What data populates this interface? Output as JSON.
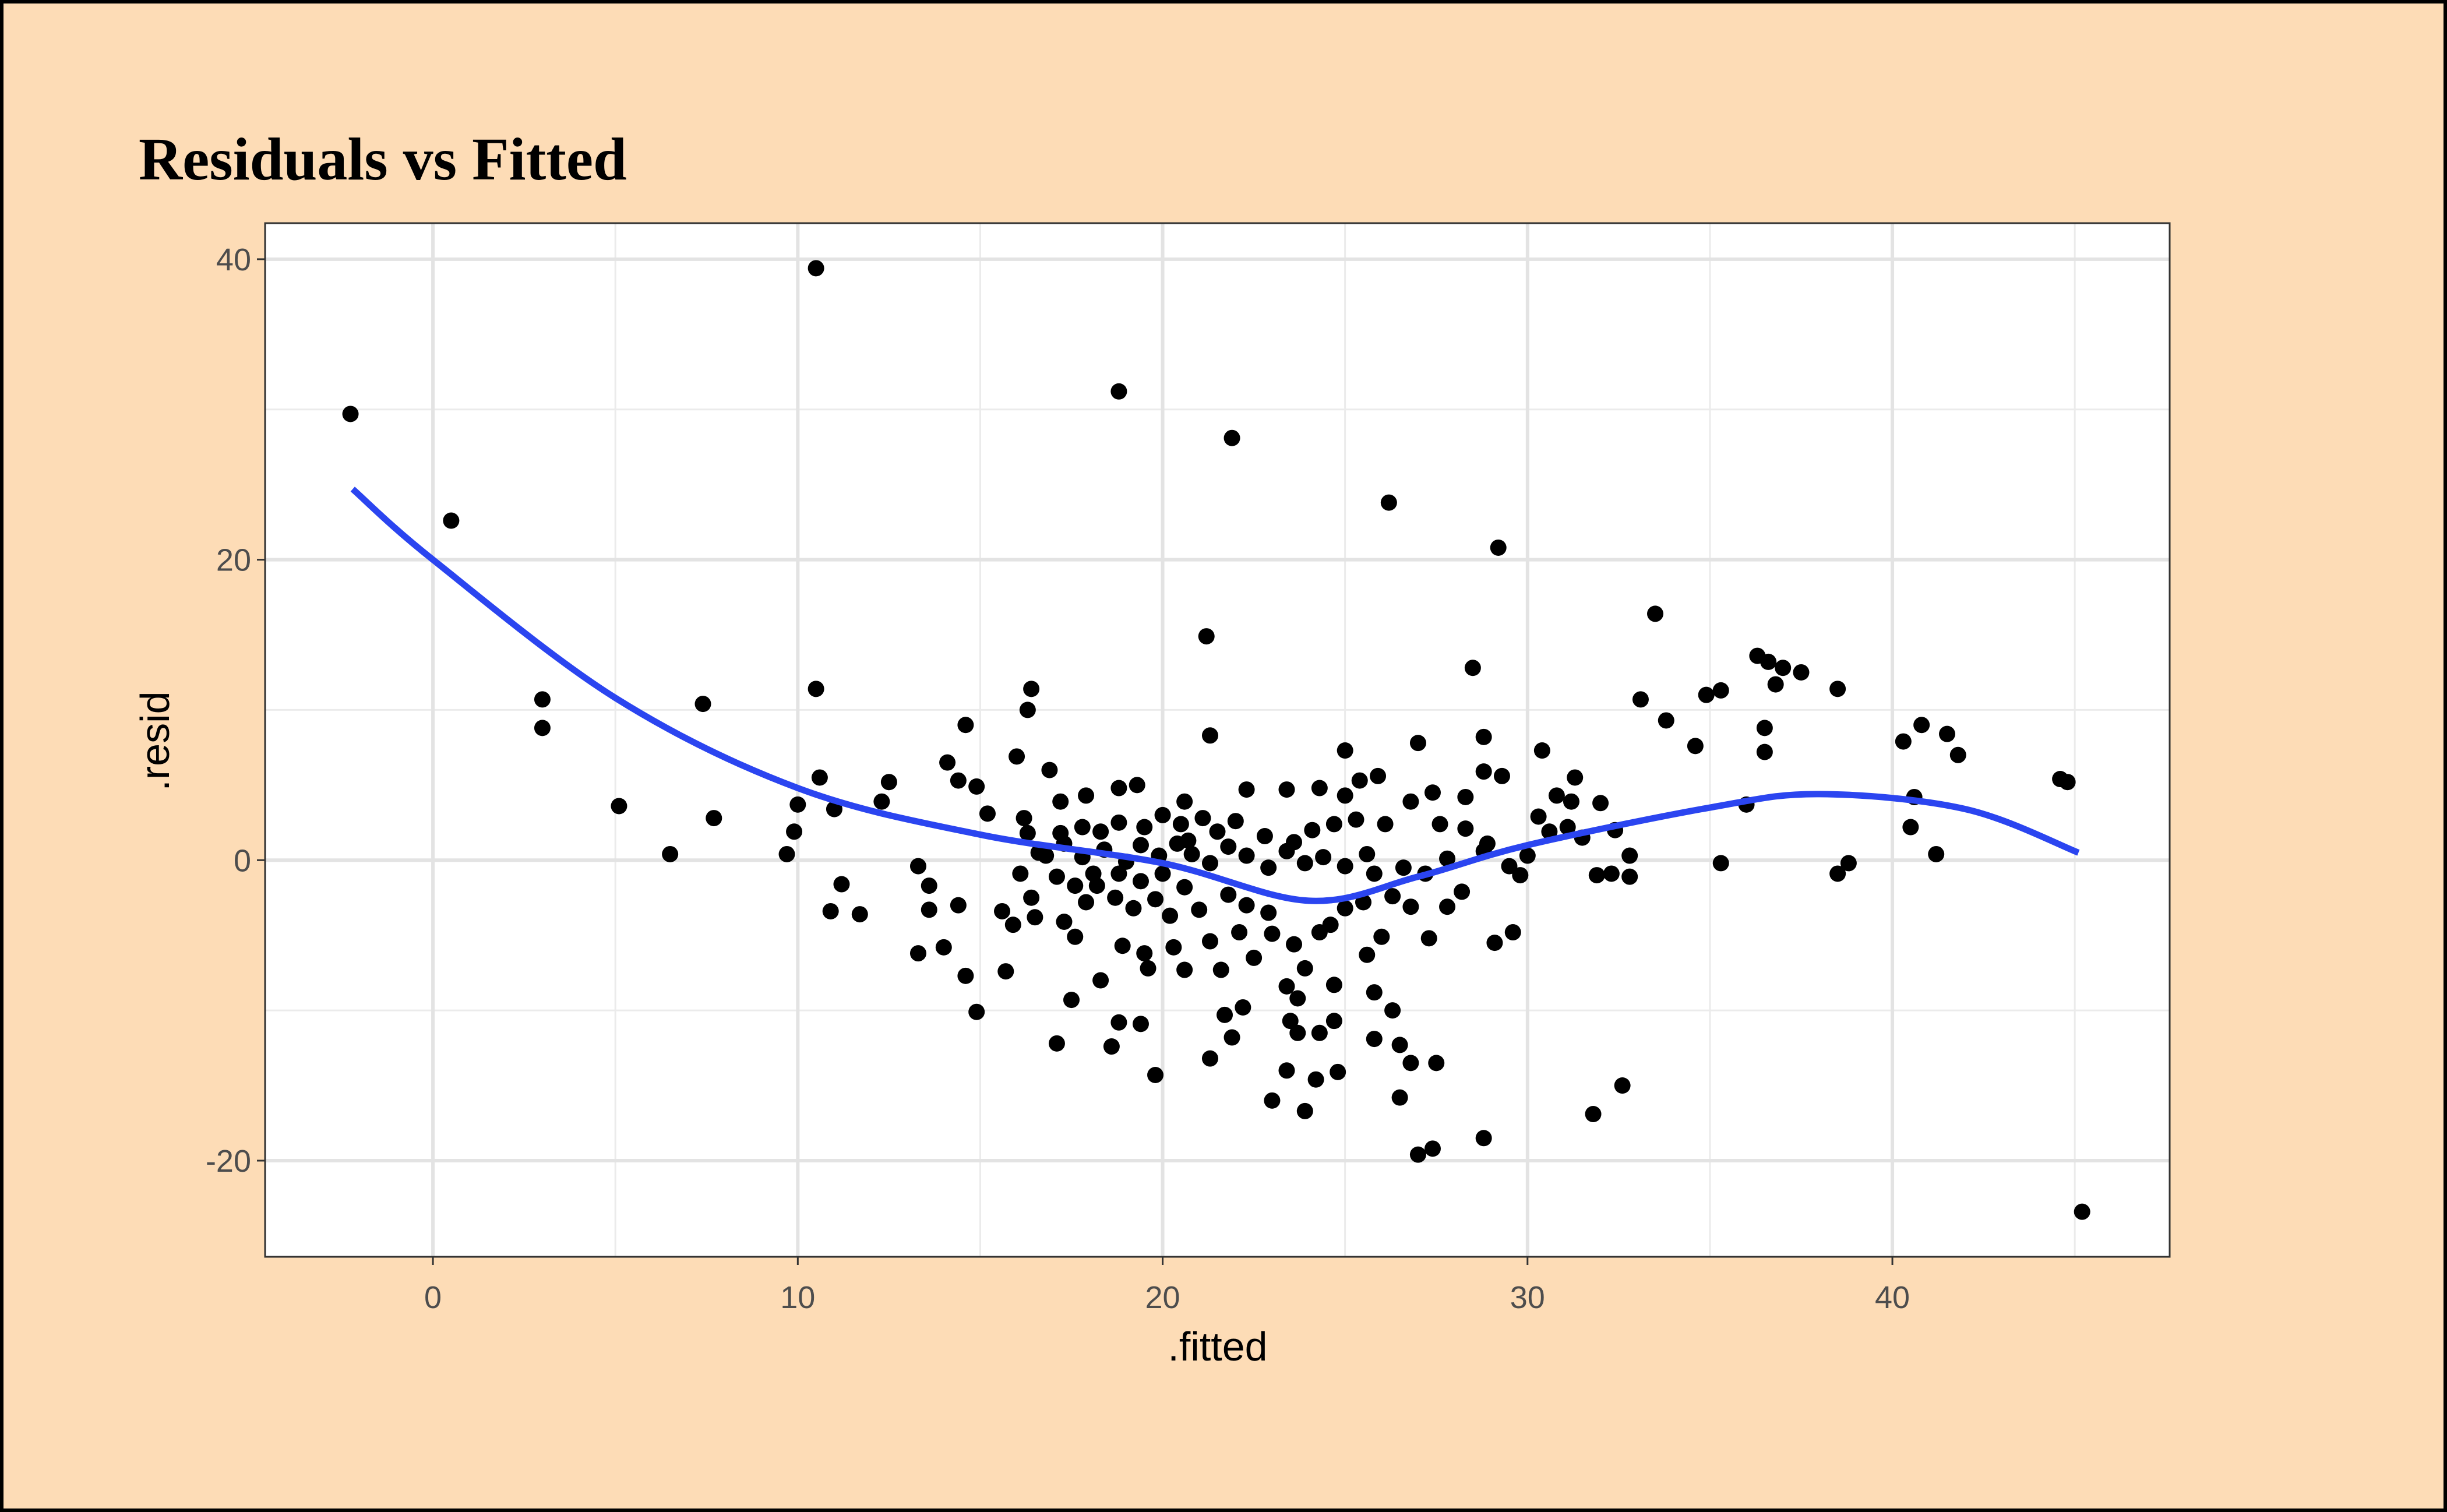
{
  "chart_data": {
    "type": "scatter",
    "title": "Residuals vs Fitted",
    "x_label": ".fitted",
    "y_label": ".resid",
    "color": "#000000",
    "grid": true,
    "xlim": [
      -4.6,
      47.6
    ],
    "ylim": [
      -26.4,
      42.4
    ],
    "xticks": [
      0,
      10,
      20,
      30,
      40
    ],
    "yticks": [
      -20,
      0,
      20,
      40
    ],
    "x": [
      -2.26,
      0.5,
      3.0,
      3.0,
      5.1,
      6.5,
      7.4,
      7.7,
      10.5,
      10.5,
      9.7,
      9.9,
      10,
      10.6,
      11.0,
      10.9,
      11.2,
      11.7,
      12.3,
      12.5,
      21.9,
      18.8,
      21.2,
      26.2,
      29.2,
      28.5,
      33.5,
      33.1,
      33.8,
      34.6,
      34.9,
      35.3,
      36.3,
      36.6,
      37.0,
      37.5,
      36.8,
      36.5,
      36.5,
      36.0,
      35.3,
      38.5,
      38.5,
      38.8,
      40.3,
      40.8,
      41.5,
      41.8,
      40.6,
      40.5,
      41.2,
      44.6,
      44.8,
      45.2,
      32.6,
      31.8,
      31.9,
      32.3,
      32.8,
      32.8,
      32.0,
      28.8,
      27.0,
      27.4,
      29.6,
      29.1,
      27.3,
      26.0,
      23.9,
      23.0,
      24.2,
      24.8,
      23.4,
      19.8,
      17.1,
      18.6,
      14.9,
      15.7,
      14.6,
      14.0,
      13.3,
      13.6,
      13.6,
      13.3,
      14.4,
      16.4,
      16.3,
      14.6,
      14.1,
      16.0,
      16.9,
      27.0,
      28.8,
      30.4,
      31.3,
      25.0,
      21.3,
      26.5,
      26.8,
      27.5,
      26.5,
      25.8,
      26.3,
      25.8,
      21.3,
      21.9,
      21.7,
      22.2,
      23.5,
      23.7,
      24.7,
      24.3,
      19.4,
      18.8,
      18.3,
      17.5,
      19.6,
      20.6,
      21.6,
      22.5,
      23.4,
      24.7,
      25.6,
      28.2,
      27.8,
      29.5,
      29.8,
      30.0,
      30.6,
      31.1,
      31.5,
      32.4,
      30.8,
      31.2,
      30.3,
      28.9,
      28.3,
      27.6,
      26.8,
      27.4,
      28.3,
      29.3,
      28.8,
      25.9,
      25.4,
      25.0,
      24.3,
      23.4,
      22.3,
      20.6,
      19.3,
      18.8,
      17.9,
      17.2,
      16.2,
      15.2,
      14.9,
      14.4,
      16.3,
      16.6,
      16.1,
      16.4,
      15.6,
      15.9,
      16.5,
      17.3,
      17.9,
      18.2,
      18.7,
      19.2,
      19.8,
      20.2,
      20.6,
      21.0,
      21.8,
      22.3,
      22.9,
      23.0,
      23.6,
      24.3,
      24.6,
      25.0,
      25.5,
      26.3,
      26.8,
      25.8,
      26.6,
      27.2,
      27.8,
      28.8,
      25.6,
      25.0,
      24.4,
      23.9,
      23.4,
      22.9,
      22.3,
      21.8,
      21.3,
      20.8,
      20.4,
      19.9,
      19.4,
      19.0,
      18.4,
      17.8,
      17.3,
      16.8,
      21.5,
      22.0,
      21.1,
      20.5,
      20.0,
      19.5,
      18.8,
      18.3,
      17.8,
      17.2,
      22.8,
      23.6,
      24.1,
      24.7,
      25.3,
      26.1,
      20.7,
      20.0,
      19.4,
      18.8,
      18.1,
      17.6,
      17.1,
      17.6,
      18.9,
      19.5,
      20.3,
      21.3,
      22.1,
      23.9,
      23.7
    ],
    "values": [
      29.7,
      22.6,
      10.7,
      8.8,
      3.6,
      0.4,
      10.4,
      2.8,
      39.4,
      11.4,
      0.4,
      1.9,
      3.7,
      5.5,
      3.4,
      -3.4,
      -1.6,
      -3.6,
      3.9,
      5.2,
      28.1,
      31.2,
      14.9,
      23.8,
      20.8,
      12.8,
      16.4,
      10.7,
      9.3,
      7.6,
      11.0,
      11.3,
      13.6,
      13.2,
      12.8,
      12.5,
      11.7,
      8.8,
      7.2,
      3.7,
      -0.2,
      11.4,
      -0.9,
      -0.2,
      7.9,
      9.0,
      8.4,
      7.0,
      4.2,
      2.2,
      0.4,
      5.4,
      5.2,
      -23.4,
      -15.0,
      -16.9,
      -1.0,
      -0.9,
      -1.1,
      0.3,
      3.8,
      -18.5,
      -19.6,
      -19.2,
      -4.8,
      -5.5,
      -5.2,
      -5.1,
      -16.7,
      -16.0,
      -14.6,
      -14.1,
      -14.0,
      -14.3,
      -12.2,
      -12.4,
      -10.1,
      -7.4,
      -7.7,
      -5.8,
      -6.2,
      -3.3,
      -1.7,
      -0.4,
      -3.0,
      11.4,
      10.0,
      9.0,
      6.5,
      6.9,
      6.0,
      7.8,
      8.2,
      7.3,
      5.5,
      7.3,
      8.3,
      -15.8,
      -13.5,
      -13.5,
      -12.3,
      -11.9,
      -10.0,
      -8.8,
      -13.2,
      -11.8,
      -10.3,
      -9.8,
      -10.7,
      -11.5,
      -10.7,
      -11.5,
      -10.9,
      -10.8,
      -8.0,
      -9.3,
      -7.2,
      -7.3,
      -7.3,
      -6.5,
      -8.4,
      -8.3,
      -6.3,
      -2.1,
      -3.1,
      -0.4,
      -1.0,
      0.3,
      1.9,
      2.2,
      1.5,
      2.0,
      4.3,
      3.9,
      2.9,
      1.1,
      2.1,
      2.4,
      3.9,
      4.5,
      4.2,
      5.6,
      5.9,
      5.6,
      5.3,
      4.3,
      4.8,
      4.7,
      4.7,
      3.9,
      5.0,
      4.8,
      4.3,
      3.9,
      2.8,
      3.1,
      4.9,
      5.3,
      1.8,
      0.5,
      -0.9,
      -2.5,
      -3.4,
      -4.3,
      -3.8,
      -4.1,
      -2.8,
      -1.7,
      -2.5,
      -3.2,
      -2.6,
      -3.7,
      -1.8,
      -3.3,
      -2.3,
      -3.0,
      -3.5,
      -4.9,
      -5.6,
      -4.8,
      -4.3,
      -3.2,
      -2.8,
      -2.4,
      -3.1,
      -0.9,
      -0.5,
      -0.9,
      0.1,
      0.6,
      0.4,
      -0.4,
      0.2,
      -0.2,
      0.6,
      -0.5,
      0.3,
      0.9,
      -0.2,
      0.4,
      1.1,
      0.3,
      1.0,
      -0.1,
      0.7,
      0.2,
      1.1,
      0.3,
      1.9,
      2.6,
      2.8,
      2.4,
      3.0,
      2.2,
      2.5,
      1.9,
      2.2,
      1.8,
      1.6,
      1.2,
      2.0,
      2.4,
      2.7,
      2.4,
      1.3,
      -0.9,
      -1.4,
      -0.9,
      -0.9,
      -1.7,
      -1.1,
      -5.1,
      -5.7,
      -6.2,
      -5.8,
      -5.4,
      -4.8,
      -7.2,
      -9.2
    ],
    "smooth": {
      "color": "#2b45f0",
      "x": [
        -2.2,
        0,
        5,
        10,
        15,
        20,
        24,
        27,
        30,
        35,
        38,
        42,
        45.1
      ],
      "values": [
        24.7,
        20,
        10.8,
        4.8,
        1.7,
        -0.2,
        -2.7,
        -1.1,
        1.0,
        3.5,
        4.4,
        3.4,
        0.5
      ]
    }
  }
}
